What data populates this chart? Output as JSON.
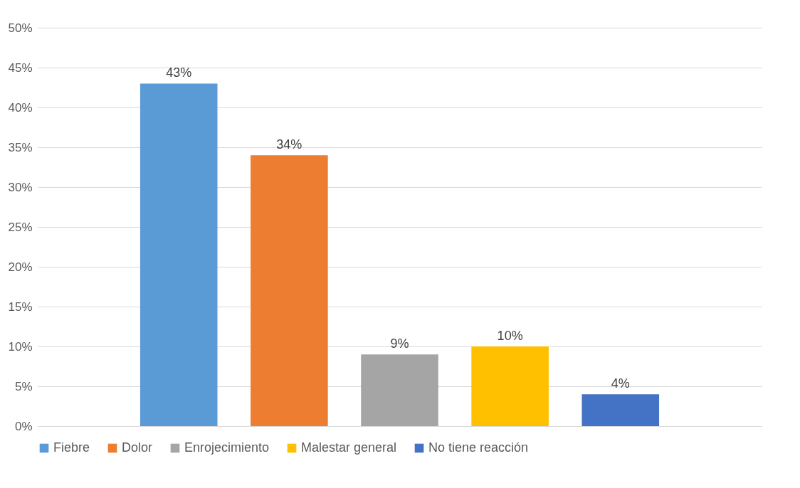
{
  "chart_data": {
    "type": "bar",
    "categories": [
      null
    ],
    "series": [
      {
        "name": "Fiebre",
        "color": "#5b9bd5",
        "values": [
          43
        ],
        "value_labels": [
          "43%"
        ]
      },
      {
        "name": "Dolor",
        "color": "#ed7d31",
        "values": [
          34
        ],
        "value_labels": [
          "34%"
        ]
      },
      {
        "name": "Enrojecimiento",
        "color": "#a5a5a5",
        "values": [
          9
        ],
        "value_labels": [
          "9%"
        ]
      },
      {
        "name": "Malestar general",
        "color": "#ffc000",
        "values": [
          10
        ],
        "value_labels": [
          "10%"
        ]
      },
      {
        "name": "No tiene reacción",
        "color": "#4472c4",
        "values": [
          4
        ],
        "value_labels": [
          "4%"
        ]
      }
    ],
    "ylim": [
      0,
      50
    ],
    "yticks": [
      {
        "value": 0,
        "label": "0%"
      },
      {
        "value": 5,
        "label": "5%"
      },
      {
        "value": 10,
        "label": "10%"
      },
      {
        "value": 15,
        "label": "15%"
      },
      {
        "value": 20,
        "label": "20%"
      },
      {
        "value": 25,
        "label": "25%"
      },
      {
        "value": 30,
        "label": "30%"
      },
      {
        "value": 35,
        "label": "35%"
      },
      {
        "value": 40,
        "label": "40%"
      },
      {
        "value": 45,
        "label": "45%"
      },
      {
        "value": 50,
        "label": "50%"
      }
    ],
    "grid": "y",
    "legend": "bottom",
    "tick_labels": "y"
  }
}
